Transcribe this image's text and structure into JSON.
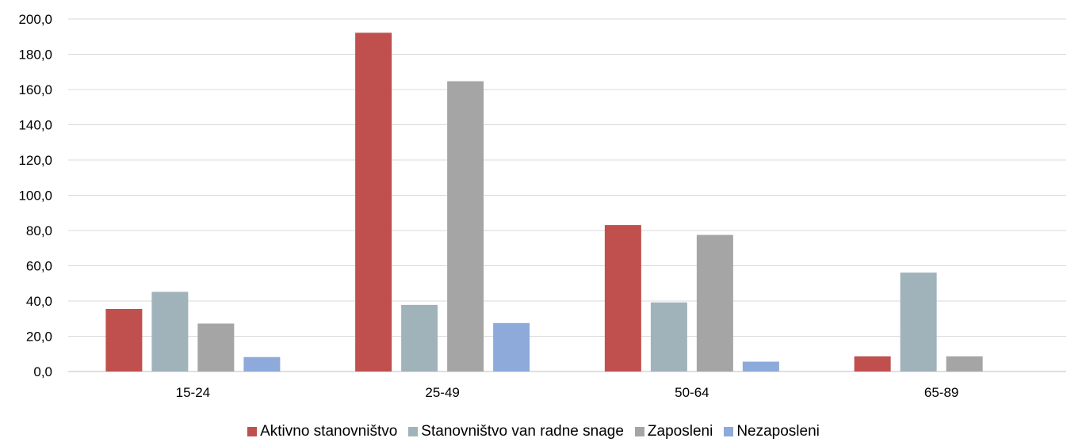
{
  "chart_data": {
    "type": "bar",
    "title": "",
    "xlabel": "",
    "ylabel": "",
    "categories": [
      "15-24",
      "25-49",
      "50-64",
      "65-89"
    ],
    "series": [
      {
        "name": "Aktivno stanovništvo",
        "color": "#c0504d",
        "values": [
          35.5,
          192.2,
          83.1,
          8.6
        ]
      },
      {
        "name": "Stanovništvo van radne snage",
        "color": "#a1b3ba",
        "values": [
          45.2,
          37.8,
          39.2,
          56.1
        ]
      },
      {
        "name": "Zaposleni",
        "color": "#a5a5a5",
        "values": [
          27.2,
          164.7,
          77.5,
          8.6
        ]
      },
      {
        "name": "Nezaposleni",
        "color": "#8eaadb",
        "values": [
          8.2,
          27.5,
          5.6,
          0
        ]
      }
    ],
    "ylim": [
      0,
      200
    ],
    "yticks": [
      "0,0",
      "20,0",
      "40,0",
      "60,0",
      "80,0",
      "100,0",
      "120,0",
      "140,0",
      "160,0",
      "180,0",
      "200,0"
    ],
    "grid": true,
    "legend_position": "bottom"
  }
}
